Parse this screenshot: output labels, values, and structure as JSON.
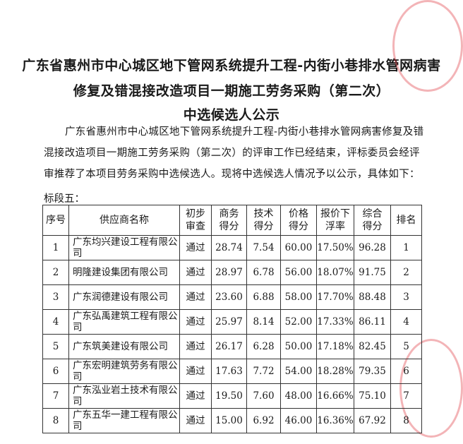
{
  "title_lines": [
    "广东省惠州市中心城区地下管网系统提升工程-内街小巷排水管网病害",
    "修复及错混接改造项目一期施工劳务采购（第二次）",
    "中选候选人公示"
  ],
  "intro": "广东省惠州市中心城区地下管网系统提升工程-内街小巷排水管网病害修复及错混接改造项目一期施工劳务采购（第二次）的评审工作已经结束，评标委员会经评审推荐了本项目劳务采购中选候选人。现将中选候选人情况予以公示，具体如下：",
  "section": "标段五：",
  "table": {
    "headers": [
      "序号",
      "供应商名称",
      "初步审查",
      "商务得分",
      "技术得分",
      "价格得分",
      "报价下浮率",
      "综合得分",
      "排名"
    ],
    "rows": [
      [
        "1",
        "广东均兴建设工程有限公司",
        "通过",
        "28.74",
        "7.54",
        "60.00",
        "17.50%",
        "96.28",
        "1"
      ],
      [
        "2",
        "明隆建设集团有限公司",
        "通过",
        "28.97",
        "6.78",
        "56.00",
        "18.07%",
        "91.75",
        "2"
      ],
      [
        "3",
        "广东润德建设有限公司",
        "通过",
        "23.60",
        "6.88",
        "58.00",
        "17.70%",
        "88.48",
        "3"
      ],
      [
        "4",
        "广东弘禹建筑工程有限公司",
        "通过",
        "25.97",
        "8.14",
        "52.00",
        "17.33%",
        "86.11",
        "4"
      ],
      [
        "5",
        "广东筑美建设有限公司",
        "通过",
        "26.17",
        "6.28",
        "50.00",
        "17.18%",
        "82.45",
        "5"
      ],
      [
        "6",
        "广东宏明建筑劳务有限公司",
        "通过",
        "17.63",
        "7.72",
        "54.00",
        "18.28%",
        "79.35",
        "6"
      ],
      [
        "7",
        "广东泓业岩土技术有限公司",
        "通过",
        "19.50",
        "7.60",
        "48.00",
        "16.66%",
        "75.10",
        "7"
      ],
      [
        "8",
        "广东五华一建工程有限公司",
        "通过",
        "15.00",
        "6.92",
        "46.00",
        "16.36%",
        "67.92",
        "8"
      ]
    ]
  },
  "seal_color": "#dc2832"
}
